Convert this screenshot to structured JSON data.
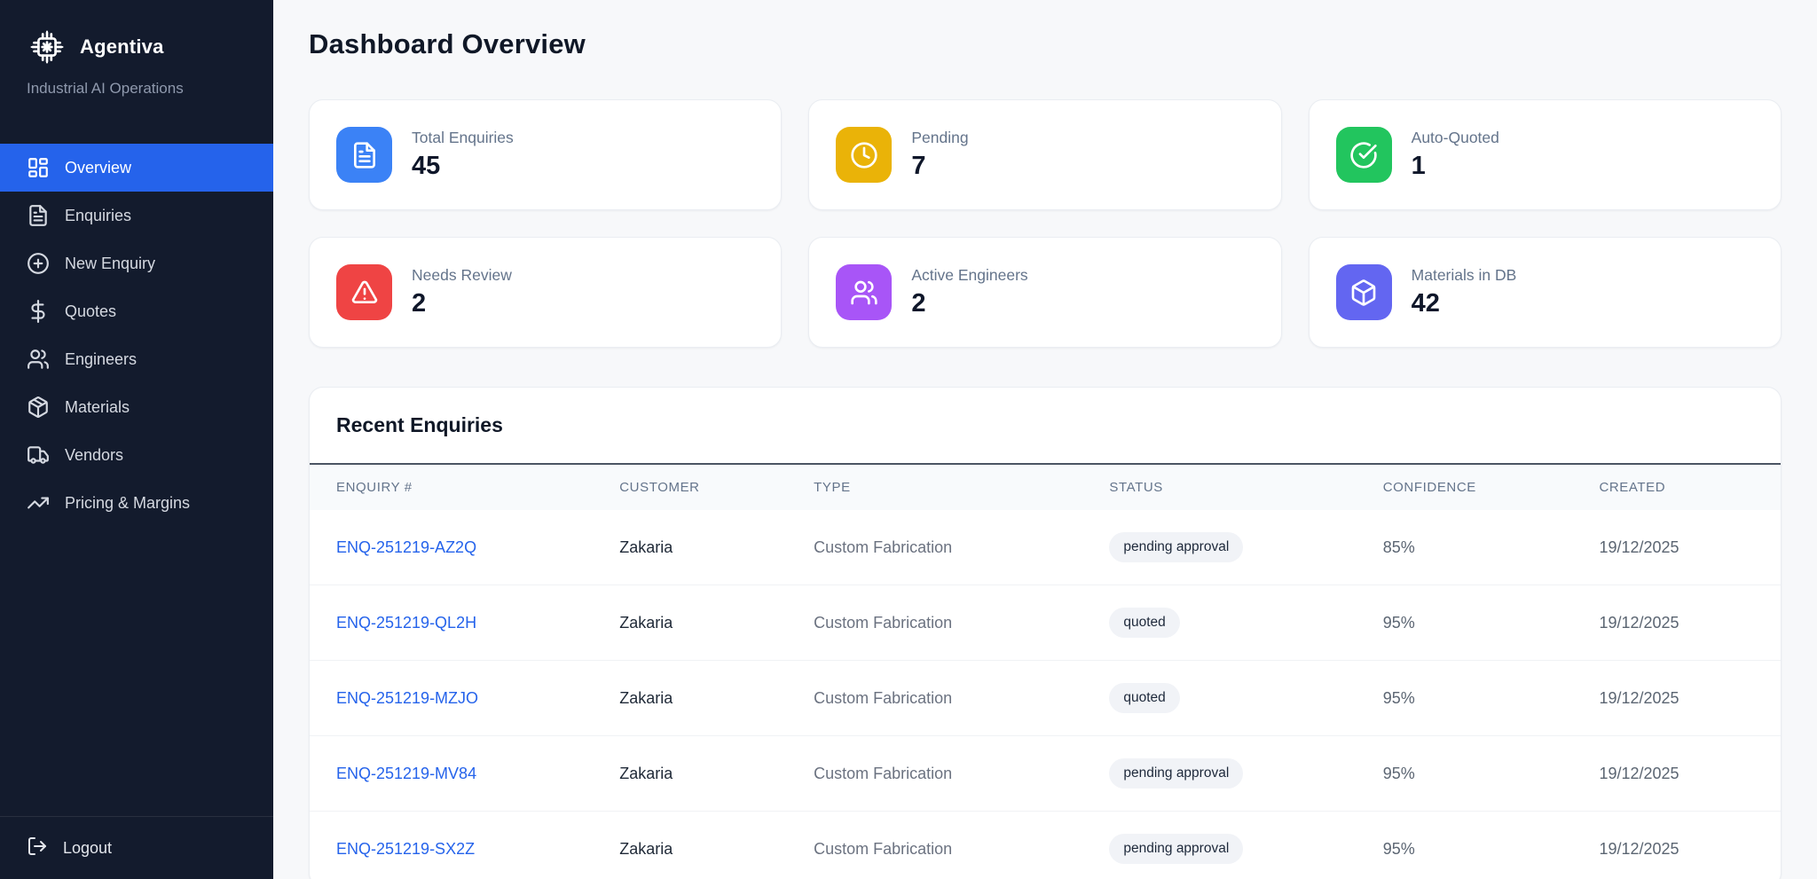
{
  "brand": {
    "name": "Agentiva",
    "tagline": "Industrial AI Operations"
  },
  "page": {
    "title": "Dashboard Overview"
  },
  "colors": {
    "active_nav": "#2563eb",
    "link": "#2563eb",
    "sidebar_bg": "#131b2d",
    "stat_blue": "#3b82f6",
    "stat_amber": "#eab308",
    "stat_green": "#22c55e",
    "stat_red": "#ef4444",
    "stat_purple": "#a855f7",
    "stat_indigo": "#6366f1"
  },
  "sidebar": {
    "items": [
      {
        "label": "Overview",
        "icon": "dashboard-icon",
        "active": true
      },
      {
        "label": "Enquiries",
        "icon": "file-text-icon",
        "active": false
      },
      {
        "label": "New Enquiry",
        "icon": "plus-circle-icon",
        "active": false
      },
      {
        "label": "Quotes",
        "icon": "dollar-icon",
        "active": false
      },
      {
        "label": "Engineers",
        "icon": "users-icon",
        "active": false
      },
      {
        "label": "Materials",
        "icon": "package-icon",
        "active": false
      },
      {
        "label": "Vendors",
        "icon": "truck-icon",
        "active": false
      },
      {
        "label": "Pricing & Margins",
        "icon": "trending-up-icon",
        "active": false
      }
    ],
    "logout_label": "Logout"
  },
  "stats": [
    {
      "label": "Total Enquiries",
      "value": "45",
      "icon": "file-text-icon",
      "color": "#3b82f6"
    },
    {
      "label": "Pending",
      "value": "7",
      "icon": "clock-icon",
      "color": "#eab308"
    },
    {
      "label": "Auto-Quoted",
      "value": "1",
      "icon": "check-circle-icon",
      "color": "#22c55e"
    },
    {
      "label": "Needs Review",
      "value": "2",
      "icon": "alert-triangle-icon",
      "color": "#ef4444"
    },
    {
      "label": "Active Engineers",
      "value": "2",
      "icon": "users-icon",
      "color": "#a855f7"
    },
    {
      "label": "Materials in DB",
      "value": "42",
      "icon": "cube-icon",
      "color": "#6366f1"
    }
  ],
  "table": {
    "title": "Recent Enquiries",
    "columns": [
      "ENQUIRY #",
      "CUSTOMER",
      "TYPE",
      "STATUS",
      "CONFIDENCE",
      "CREATED"
    ],
    "rows": [
      {
        "enquiry": "ENQ-251219-AZ2Q",
        "customer": "Zakaria",
        "type": "Custom Fabrication",
        "status": "pending approval",
        "confidence": "85%",
        "created": "19/12/2025"
      },
      {
        "enquiry": "ENQ-251219-QL2H",
        "customer": "Zakaria",
        "type": "Custom Fabrication",
        "status": "quoted",
        "confidence": "95%",
        "created": "19/12/2025"
      },
      {
        "enquiry": "ENQ-251219-MZJO",
        "customer": "Zakaria",
        "type": "Custom Fabrication",
        "status": "quoted",
        "confidence": "95%",
        "created": "19/12/2025"
      },
      {
        "enquiry": "ENQ-251219-MV84",
        "customer": "Zakaria",
        "type": "Custom Fabrication",
        "status": "pending approval",
        "confidence": "95%",
        "created": "19/12/2025"
      },
      {
        "enquiry": "ENQ-251219-SX2Z",
        "customer": "Zakaria",
        "type": "Custom Fabrication",
        "status": "pending approval",
        "confidence": "95%",
        "created": "19/12/2025"
      }
    ]
  }
}
